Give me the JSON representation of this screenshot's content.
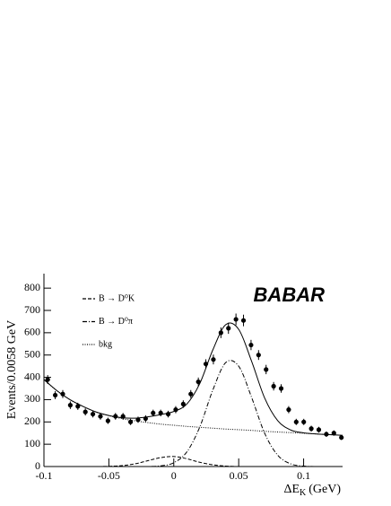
{
  "chart_data": {
    "type": "scatter",
    "y_label": "Events/0.0058 GeV",
    "x_label": "ΔE",
    "x_label_sub": "K",
    "x_label_unit": "(GeV)",
    "logo": "BABAR",
    "xlim": [
      -0.1,
      0.13
    ],
    "xticks": [
      -0.1,
      -0.05,
      0,
      0.05,
      0.1
    ],
    "ylim": [
      0,
      865
    ],
    "yticks": [
      0,
      100,
      200,
      300,
      400,
      500,
      600,
      700,
      800
    ],
    "data": {
      "color": "#000",
      "x": [
        -0.0971,
        -0.0913,
        -0.0855,
        -0.0797,
        -0.0739,
        -0.0681,
        -0.0623,
        -0.0565,
        -0.0507,
        -0.0449,
        -0.0391,
        -0.0333,
        -0.0275,
        -0.0217,
        -0.0159,
        -0.0101,
        -0.0043,
        0.0015,
        0.0073,
        0.0131,
        0.0189,
        0.0247,
        0.0305,
        0.0363,
        0.0421,
        0.0479,
        0.0537,
        0.0595,
        0.0653,
        0.0711,
        0.0769,
        0.0827,
        0.0885,
        0.0943,
        0.1001,
        0.1059,
        0.1117,
        0.1175,
        0.1233,
        0.1291
      ],
      "values": [
        390,
        320,
        325,
        275,
        270,
        245,
        235,
        225,
        205,
        225,
        225,
        200,
        210,
        215,
        240,
        240,
        235,
        255,
        280,
        325,
        380,
        460,
        480,
        600,
        620,
        660,
        655,
        545,
        500,
        435,
        360,
        350,
        255,
        200,
        200,
        170,
        165,
        145,
        150,
        130
      ],
      "errors": [
        20,
        18,
        18,
        17,
        16,
        16,
        15,
        15,
        14,
        15,
        15,
        14,
        14,
        15,
        15,
        15,
        15,
        16,
        17,
        18,
        19,
        21,
        22,
        24,
        25,
        26,
        26,
        23,
        22,
        21,
        19,
        19,
        16,
        14,
        14,
        13,
        13,
        12,
        12,
        11
      ]
    },
    "curves_x": [
      -0.1,
      -0.09,
      -0.08,
      -0.07,
      -0.06,
      -0.05,
      -0.04,
      -0.03,
      -0.02,
      -0.01,
      0,
      0.01,
      0.02,
      0.03,
      0.04,
      0.05,
      0.06,
      0.07,
      0.08,
      0.09,
      0.1,
      0.11,
      0.12,
      0.13
    ],
    "series": [
      {
        "style": "solid",
        "values": [
          390,
          340,
          300,
          270,
          245,
          229,
          219,
          217,
          223,
          233,
          247,
          280,
          372,
          522,
          636,
          615,
          471,
          307,
          206,
          164,
          151,
          146,
          143,
          140
        ]
      },
      {
        "name": "B → D⁰K",
        "style": "dashed",
        "values": [
          0,
          0,
          0,
          0,
          0,
          1,
          4,
          12,
          26,
          40,
          45,
          35,
          19,
          8,
          2,
          0,
          0,
          0,
          0,
          0,
          0,
          0,
          0,
          0
        ]
      },
      {
        "name": "B → D⁰π",
        "style": "dashdot",
        "values": [
          0,
          0,
          0,
          0,
          0,
          0,
          0,
          0,
          0,
          3,
          17,
          65,
          177,
          342,
          466,
          450,
          309,
          149,
          51,
          12,
          2,
          0,
          0,
          0
        ]
      },
      {
        "name": "bkg",
        "style": "dotted",
        "values": [
          390,
          340,
          300,
          270,
          245,
          228,
          215,
          205,
          197,
          190,
          185,
          180,
          176,
          172,
          168,
          165,
          162,
          158,
          155,
          152,
          149,
          146,
          143,
          140
        ]
      }
    ]
  }
}
